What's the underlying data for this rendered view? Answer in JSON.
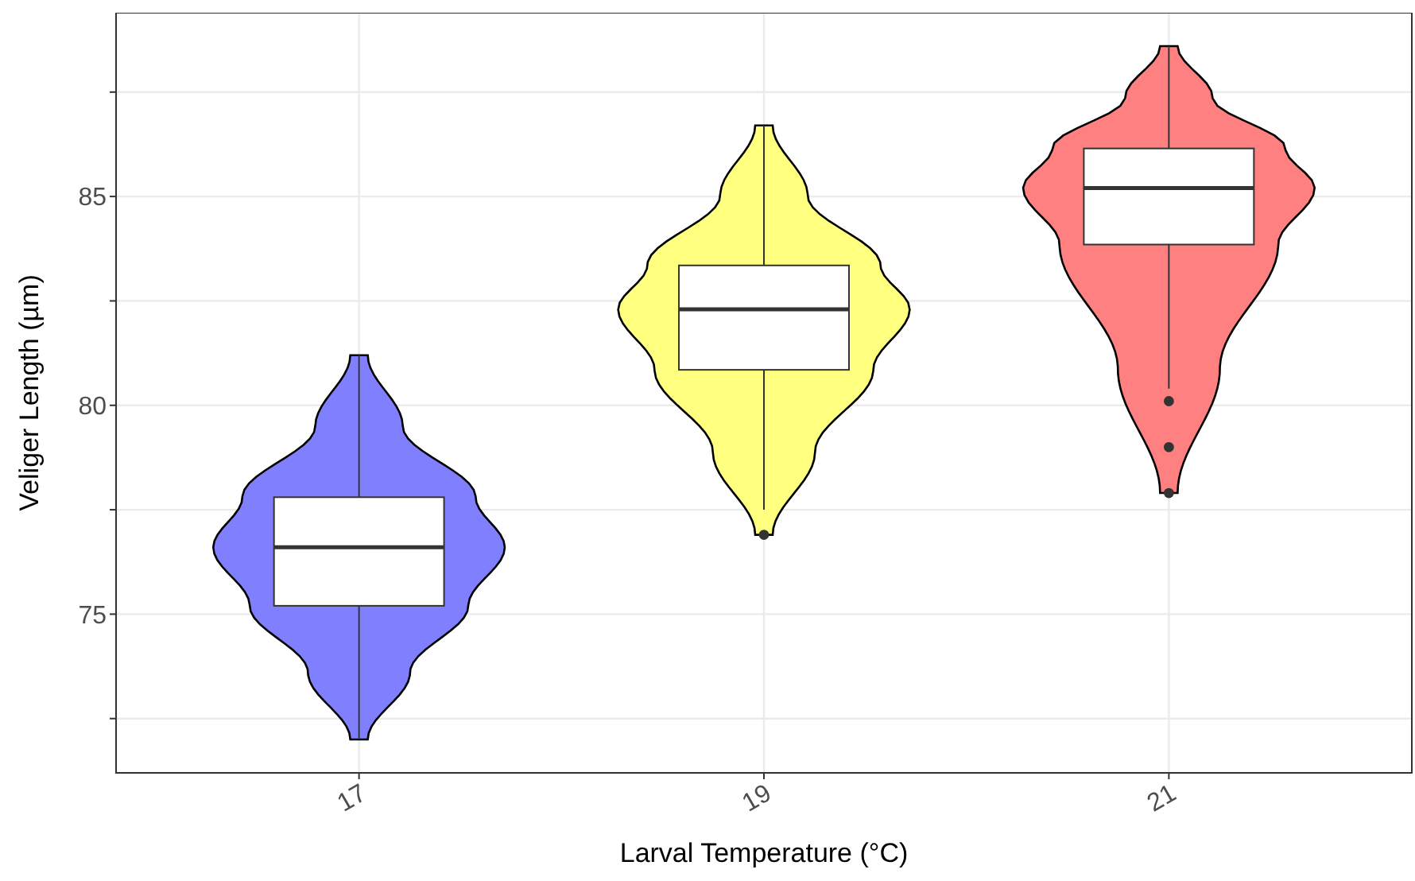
{
  "chart_data": {
    "type": "box",
    "xlabel": "Larval Temperature (°C)",
    "ylabel": "Veliger Length (µm)",
    "categories": [
      "17",
      "19",
      "21"
    ],
    "boxes": [
      {
        "low": 72.0,
        "q1": 75.2,
        "median": 76.6,
        "q3": 77.8,
        "high": 81.2
      },
      {
        "low": 77.5,
        "q1": 80.85,
        "median": 82.3,
        "q3": 83.35,
        "high": 86.7,
        "outliers": [
          76.9
        ]
      },
      {
        "low": 80.4,
        "q1": 83.85,
        "median": 85.2,
        "q3": 86.15,
        "high": 88.6,
        "outliers": [
          80.1,
          79.0,
          77.9
        ]
      }
    ],
    "ylim": [
      71.2,
      89.4
    ],
    "yticks": [
      {
        "value": 72.5,
        "label": null
      },
      75,
      {
        "value": 77.5,
        "label": null
      },
      80,
      {
        "value": 82.5,
        "label": null
      },
      85,
      {
        "value": 87.5,
        "label": null
      }
    ],
    "grid": true
  }
}
